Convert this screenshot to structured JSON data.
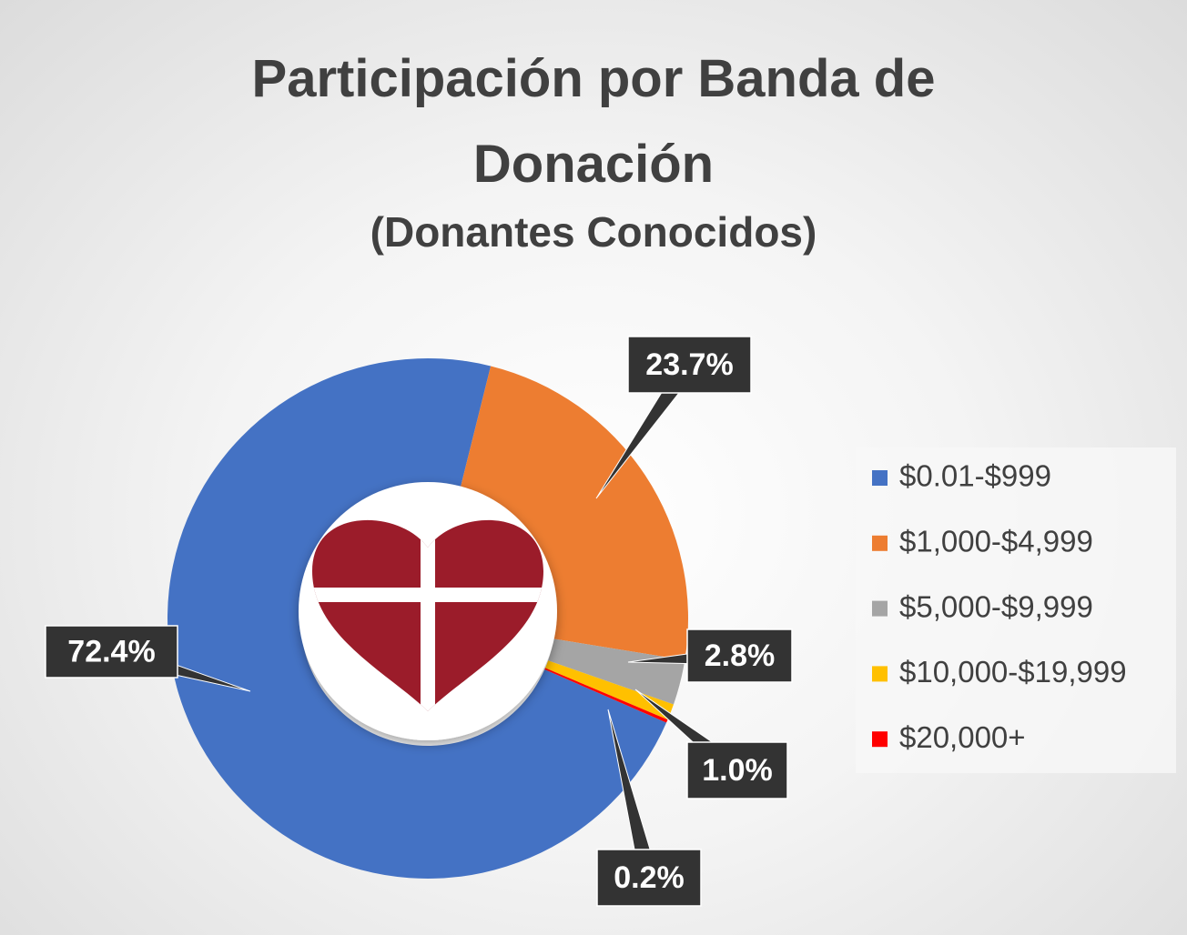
{
  "chart_data": {
    "type": "donut",
    "title": "Participación por Banda de Donación",
    "subtitle": "(Donantes Conocidos)",
    "categories": [
      "$0.01-$999",
      "$1,000-$4,999",
      "$5,000-$9,999",
      "$10,000-$19,999",
      "$20,000+"
    ],
    "values": [
      72.4,
      23.7,
      2.8,
      1.0,
      0.2
    ],
    "value_labels": [
      "72.4%",
      "23.7%",
      "2.8%",
      "1.0%",
      "0.2%"
    ],
    "colors": [
      "#4472c4",
      "#ed7d31",
      "#a5a5a5",
      "#ffc000",
      "#ff0000"
    ],
    "legend": "right"
  }
}
